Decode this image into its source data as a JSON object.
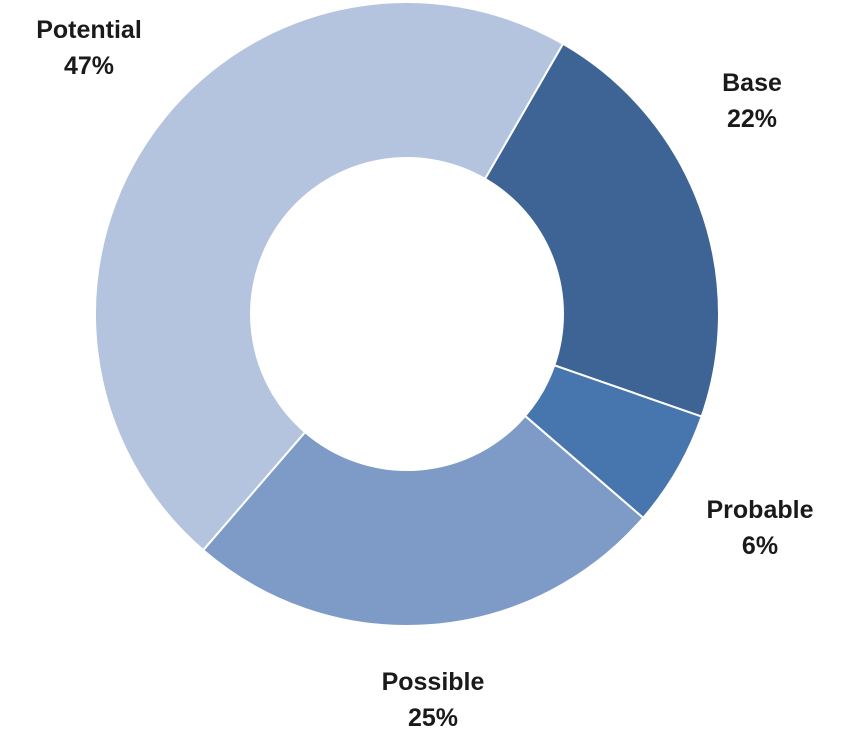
{
  "chart_data": {
    "type": "pie",
    "variant": "doughnut",
    "title": "",
    "slices": [
      {
        "name": "Base",
        "value": 22,
        "label": "22%",
        "color": "#3d6495"
      },
      {
        "name": "Probable",
        "value": 6,
        "label": "6%",
        "color": "#4775ad"
      },
      {
        "name": "Possible",
        "value": 25,
        "label": "25%",
        "color": "#7e9bc8"
      },
      {
        "name": "Potential",
        "value": 47,
        "label": "47%",
        "color": "#b4c3de"
      }
    ],
    "start_angle_deg": 30,
    "direction": "clockwise",
    "legend": "none"
  }
}
